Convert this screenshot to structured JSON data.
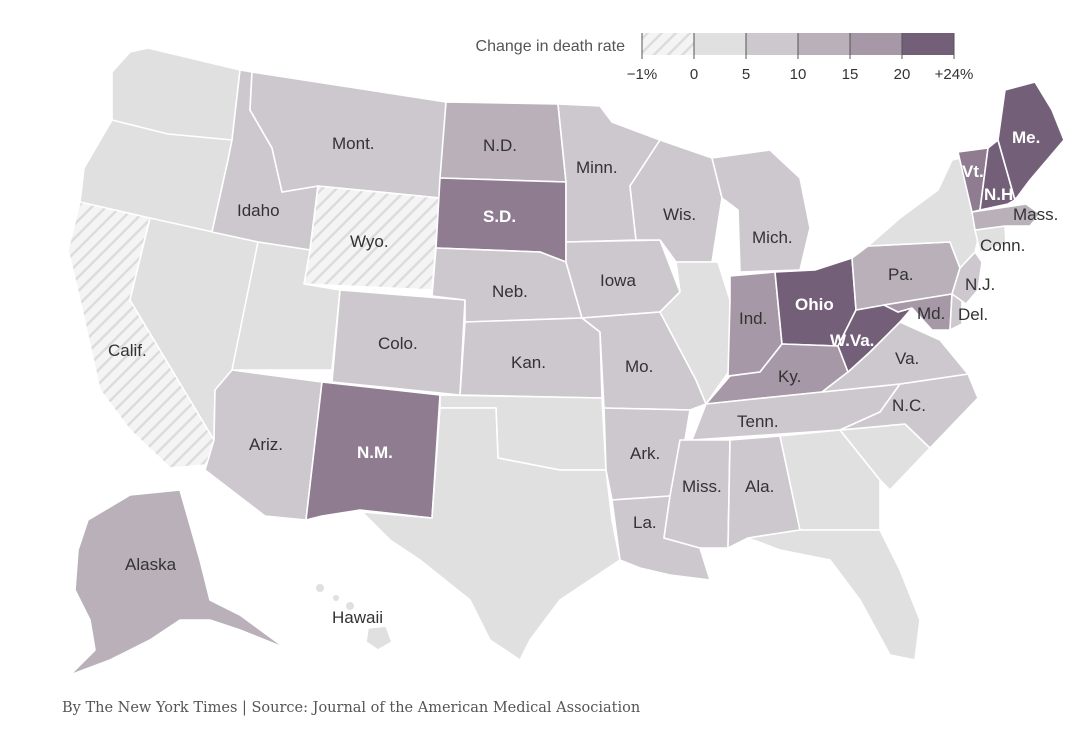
{
  "legend": {
    "title": "Change in death rate",
    "ticks": [
      "−1%",
      "0",
      "5",
      "10",
      "15",
      "20",
      "+24%"
    ],
    "colors": [
      "#e0e0e0",
      "#ccc8cd",
      "#b9b0ba",
      "#a698a7",
      "#8f7c91",
      "#745f78"
    ],
    "negative_fill": "hatched light gray"
  },
  "states": {
    "ca": "Calif.",
    "wy": "Wyo.",
    "mt": "Mont.",
    "id": "Idaho",
    "nd": "N.D.",
    "sd": "S.D.",
    "mn": "Minn.",
    "wi": "Wis.",
    "mi": "Mich.",
    "ia": "Iowa",
    "ne": "Neb.",
    "co": "Colo.",
    "ks": "Kan.",
    "mo": "Mo.",
    "il": "",
    "in": "Ind.",
    "oh": "Ohio",
    "pa": "Pa.",
    "nj": "N.J.",
    "md": "Md.",
    "de": "Del.",
    "wv": "W.Va.",
    "va": "Va.",
    "ky": "Ky.",
    "tn": "Tenn.",
    "nc": "N.C.",
    "ar": "Ark.",
    "ms": "Miss.",
    "al": "Ala.",
    "la": "La.",
    "az": "Ariz.",
    "nm": "N.M.",
    "me": "Me.",
    "vt": "Vt.",
    "nh": "N.H.",
    "ma": "Mass.",
    "ct": "Conn.",
    "ak": "Alaska",
    "hi": "Hawaii"
  },
  "credit": "By The New York Times | Source: Journal of the American Medical Association"
}
